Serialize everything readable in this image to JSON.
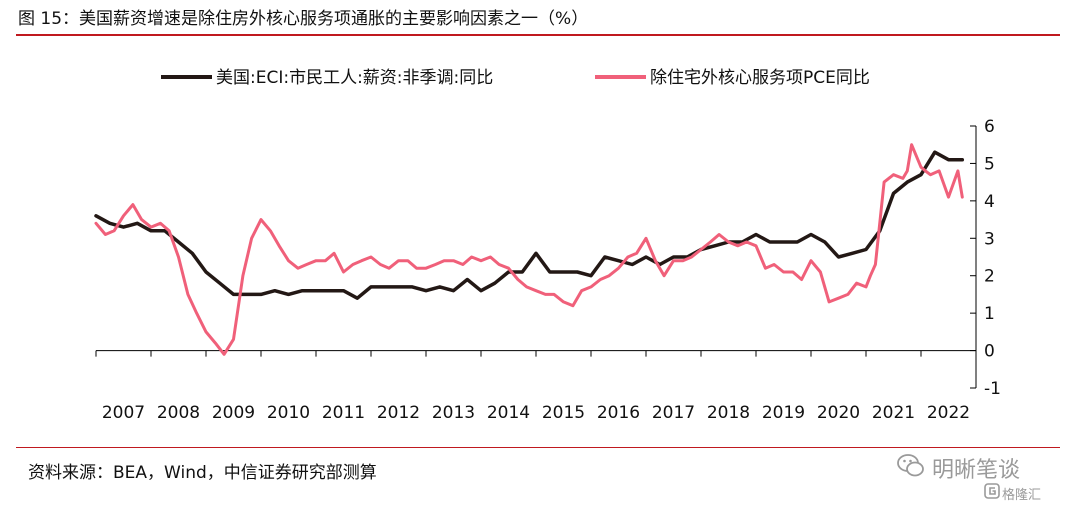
{
  "header": {
    "title": "图 15：美国薪资增速是除住房外核心服务项通胀的主要影响因素之一（%）"
  },
  "footer": {
    "source": "资料来源：BEA，Wind，中信证券研究部测算",
    "brand": "明晰笔谈",
    "brand_sub": "格隆汇"
  },
  "chart_data": {
    "type": "line",
    "title": "",
    "xlabel": "",
    "ylabel": "",
    "xlim": [
      2007.0,
      2023.0
    ],
    "ylim": [
      -1,
      6
    ],
    "y_ticks": [
      "6",
      "5",
      "4",
      "3",
      "2",
      "1",
      "0",
      "-1"
    ],
    "x_tick_labels": [
      "2007",
      "2008",
      "2009",
      "2010",
      "2011",
      "2012",
      "2013",
      "2014",
      "2015",
      "2016",
      "2017",
      "2018",
      "2019",
      "2020",
      "2021",
      "2022"
    ],
    "grid": false,
    "legend_position": "top",
    "series": [
      {
        "name": "美国:ECI:市民工人:薪资:非季调:同比",
        "color": "#231815",
        "x": [
          2007.0,
          2007.25,
          2007.5,
          2007.75,
          2008.0,
          2008.25,
          2008.5,
          2008.75,
          2009.0,
          2009.25,
          2009.5,
          2009.75,
          2010.0,
          2010.25,
          2010.5,
          2010.75,
          2011.0,
          2011.25,
          2011.5,
          2011.75,
          2012.0,
          2012.25,
          2012.5,
          2012.75,
          2013.0,
          2013.25,
          2013.5,
          2013.75,
          2014.0,
          2014.25,
          2014.5,
          2014.75,
          2015.0,
          2015.25,
          2015.5,
          2015.75,
          2016.0,
          2016.25,
          2016.5,
          2016.75,
          2017.0,
          2017.25,
          2017.5,
          2017.75,
          2018.0,
          2018.25,
          2018.5,
          2018.75,
          2019.0,
          2019.25,
          2019.5,
          2019.75,
          2020.0,
          2020.25,
          2020.5,
          2020.75,
          2021.0,
          2021.25,
          2021.5,
          2021.75,
          2022.0,
          2022.25,
          2022.5,
          2022.75
        ],
        "values": [
          3.6,
          3.4,
          3.3,
          3.4,
          3.2,
          3.2,
          2.9,
          2.6,
          2.1,
          1.8,
          1.5,
          1.5,
          1.5,
          1.6,
          1.5,
          1.6,
          1.6,
          1.6,
          1.6,
          1.4,
          1.7,
          1.7,
          1.7,
          1.7,
          1.6,
          1.7,
          1.6,
          1.9,
          1.6,
          1.8,
          2.1,
          2.1,
          2.6,
          2.1,
          2.1,
          2.1,
          2.0,
          2.5,
          2.4,
          2.3,
          2.5,
          2.3,
          2.5,
          2.5,
          2.7,
          2.8,
          2.9,
          2.9,
          3.1,
          2.9,
          2.9,
          2.9,
          3.1,
          2.9,
          2.5,
          2.6,
          2.7,
          3.2,
          4.2,
          4.5,
          4.7,
          5.3,
          5.1,
          5.1
        ]
      },
      {
        "name": "除住宅外核心服务项PCE同比",
        "color": "#f0607a",
        "x": [
          2007.0,
          2007.17,
          2007.33,
          2007.5,
          2007.67,
          2007.83,
          2008.0,
          2008.17,
          2008.33,
          2008.5,
          2008.67,
          2008.83,
          2009.0,
          2009.17,
          2009.33,
          2009.5,
          2009.67,
          2009.83,
          2010.0,
          2010.17,
          2010.33,
          2010.5,
          2010.67,
          2010.83,
          2011.0,
          2011.17,
          2011.33,
          2011.5,
          2011.67,
          2011.83,
          2012.0,
          2012.17,
          2012.33,
          2012.5,
          2012.67,
          2012.83,
          2013.0,
          2013.17,
          2013.33,
          2013.5,
          2013.67,
          2013.83,
          2014.0,
          2014.17,
          2014.33,
          2014.5,
          2014.67,
          2014.83,
          2015.0,
          2015.17,
          2015.33,
          2015.5,
          2015.67,
          2015.83,
          2016.0,
          2016.17,
          2016.33,
          2016.5,
          2016.67,
          2016.83,
          2017.0,
          2017.17,
          2017.33,
          2017.5,
          2017.67,
          2017.83,
          2018.0,
          2018.17,
          2018.33,
          2018.5,
          2018.67,
          2018.83,
          2019.0,
          2019.17,
          2019.33,
          2019.5,
          2019.67,
          2019.83,
          2020.0,
          2020.17,
          2020.33,
          2020.5,
          2020.67,
          2020.83,
          2021.0,
          2021.08,
          2021.17,
          2021.33,
          2021.5,
          2021.67,
          2021.75,
          2021.83,
          2022.0,
          2022.08,
          2022.17,
          2022.33,
          2022.5,
          2022.67,
          2022.75
        ],
        "values": [
          3.4,
          3.1,
          3.2,
          3.6,
          3.9,
          3.5,
          3.3,
          3.4,
          3.2,
          2.5,
          1.5,
          1.0,
          0.5,
          0.2,
          -0.1,
          0.3,
          2.0,
          3.0,
          3.5,
          3.2,
          2.8,
          2.4,
          2.2,
          2.3,
          2.4,
          2.4,
          2.6,
          2.1,
          2.3,
          2.4,
          2.5,
          2.3,
          2.2,
          2.4,
          2.4,
          2.2,
          2.2,
          2.3,
          2.4,
          2.4,
          2.3,
          2.5,
          2.4,
          2.5,
          2.3,
          2.2,
          1.9,
          1.7,
          1.6,
          1.5,
          1.5,
          1.3,
          1.2,
          1.6,
          1.7,
          1.9,
          2.0,
          2.2,
          2.5,
          2.6,
          3.0,
          2.4,
          2.0,
          2.4,
          2.4,
          2.5,
          2.7,
          2.9,
          3.1,
          2.9,
          2.8,
          2.9,
          2.8,
          2.2,
          2.3,
          2.1,
          2.1,
          1.9,
          2.4,
          2.1,
          1.3,
          1.4,
          1.5,
          1.8,
          1.7,
          2.0,
          2.3,
          4.5,
          4.7,
          4.6,
          4.8,
          5.5,
          4.9,
          4.8,
          4.7,
          4.8,
          4.1,
          4.8,
          4.1
        ]
      }
    ]
  }
}
